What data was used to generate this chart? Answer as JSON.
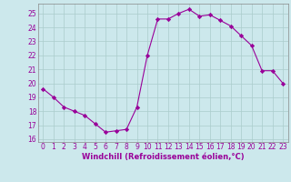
{
  "x": [
    0,
    1,
    2,
    3,
    4,
    5,
    6,
    7,
    8,
    9,
    10,
    11,
    12,
    13,
    14,
    15,
    16,
    17,
    18,
    19,
    20,
    21,
    22,
    23
  ],
  "y": [
    19.6,
    19.0,
    18.3,
    18.0,
    17.7,
    17.1,
    16.5,
    16.6,
    16.7,
    18.3,
    22.0,
    24.6,
    24.6,
    25.0,
    25.3,
    24.8,
    24.9,
    24.5,
    24.1,
    23.4,
    22.7,
    20.9,
    20.9,
    20.0
  ],
  "line_color": "#990099",
  "marker": "D",
  "marker_size": 2.2,
  "bg_color": "#cce8ec",
  "grid_color": "#aacccc",
  "xlabel": "Windchill (Refroidissement éolien,°C)",
  "xlabel_color": "#990099",
  "tick_color": "#990099",
  "spine_color": "#888888",
  "ylim": [
    15.8,
    25.7
  ],
  "xlim": [
    -0.5,
    23.5
  ],
  "yticks": [
    16,
    17,
    18,
    19,
    20,
    21,
    22,
    23,
    24,
    25
  ],
  "xticks": [
    0,
    1,
    2,
    3,
    4,
    5,
    6,
    7,
    8,
    9,
    10,
    11,
    12,
    13,
    14,
    15,
    16,
    17,
    18,
    19,
    20,
    21,
    22,
    23
  ],
  "tick_fontsize": 5.5,
  "xlabel_fontsize": 6.0
}
